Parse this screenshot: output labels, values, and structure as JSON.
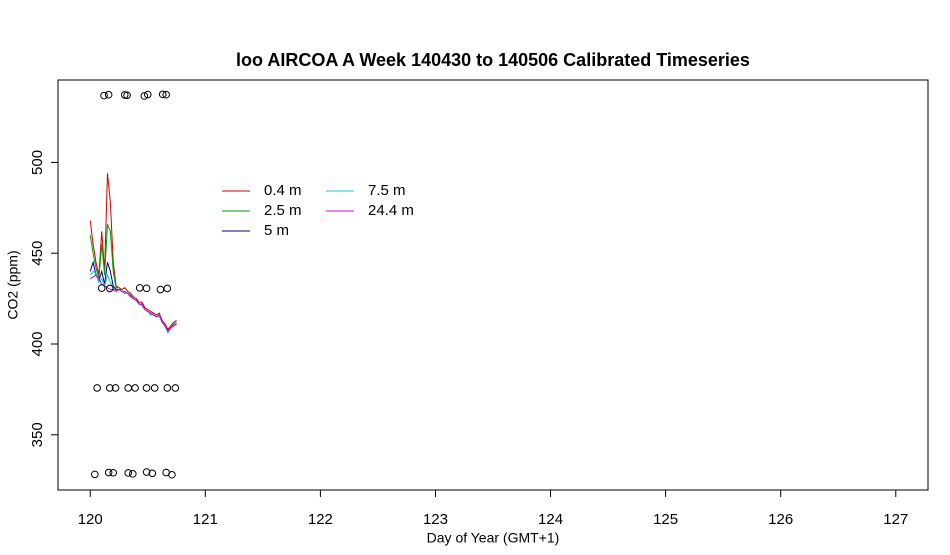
{
  "chart_data": {
    "type": "line",
    "title": "loo AIRCOA A  Week 140430 to 140506  Calibrated Timeseries",
    "x_label": "Day of Year (GMT+1)",
    "y_label": "CO2 (ppm)",
    "xlim": [
      119.72,
      127.28
    ],
    "xticks": [
      120,
      121,
      122,
      123,
      124,
      125,
      126,
      127
    ],
    "ylim": [
      319.6,
      545.4
    ],
    "yticks": [
      350,
      400,
      450,
      500
    ],
    "x": [
      120.0,
      120.025,
      120.05,
      120.075,
      120.1,
      120.125,
      120.15,
      120.175,
      120.2,
      120.225,
      120.25,
      120.275,
      120.3,
      120.325,
      120.35,
      120.375,
      120.4,
      120.425,
      120.45,
      120.475,
      120.5,
      120.525,
      120.55,
      120.575,
      120.6,
      120.625,
      120.65,
      120.675,
      120.7,
      120.725,
      120.75
    ],
    "series": [
      {
        "name": "0.4 m",
        "color": "#d00000",
        "values": [
          468,
          455,
          445,
          438,
          462,
          440,
          494,
          478,
          445,
          432,
          431,
          430,
          431,
          429,
          428,
          426,
          425,
          423,
          423,
          420,
          419,
          418,
          417,
          416,
          417,
          413,
          411,
          408,
          410,
          412,
          413
        ]
      },
      {
        "name": "2.5 m",
        "color": "#00a000",
        "values": [
          460,
          450,
          442,
          436,
          455,
          438,
          466,
          462,
          440,
          431,
          431,
          429,
          429,
          428,
          427,
          425,
          424,
          422,
          422,
          419,
          418,
          417,
          416,
          415,
          416,
          412,
          410,
          407,
          409,
          411,
          412
        ]
      },
      {
        "name": "5 m",
        "color": "#000090",
        "values": [
          440,
          445,
          438,
          435,
          440,
          433,
          445,
          440,
          432,
          430,
          430,
          429,
          428,
          428,
          426,
          425,
          424,
          422,
          422,
          419,
          418,
          417,
          416,
          415,
          416,
          412,
          410,
          407,
          409,
          410,
          411
        ]
      },
      {
        "name": "7.5 m",
        "color": "#00d0e0",
        "values": [
          438,
          440,
          439,
          434,
          436,
          432,
          438,
          434,
          431,
          429,
          430,
          429,
          428,
          428,
          426,
          425,
          424,
          422,
          421,
          419,
          418,
          416,
          416,
          415,
          415,
          412,
          410,
          406,
          409,
          410,
          411
        ]
      },
      {
        "name": "24.4 m",
        "color": "#e000e0",
        "values": [
          436,
          437,
          438,
          436,
          433,
          432,
          431,
          430,
          430,
          429,
          430,
          429,
          428,
          428,
          426,
          425,
          424,
          422,
          422,
          419,
          418,
          417,
          416,
          415,
          416,
          412,
          410,
          407,
          409,
          410,
          411
        ]
      }
    ],
    "points": {
      "x": [
        120.12,
        120.16,
        120.3,
        120.32,
        120.47,
        120.5,
        120.63,
        120.66,
        120.1,
        120.17,
        120.43,
        120.49,
        120.61,
        120.67,
        120.06,
        120.17,
        120.22,
        120.33,
        120.39,
        120.49,
        120.56,
        120.67,
        120.74,
        120.04,
        120.16,
        120.2,
        120.33,
        120.37,
        120.49,
        120.54,
        120.66,
        120.71
      ],
      "y": [
        536.8,
        537.3,
        537.2,
        537,
        536.6,
        537.4,
        537.5,
        537.3,
        430.8,
        430.6,
        430.9,
        430.7,
        430,
        430.6,
        375.8,
        375.8,
        375.8,
        375.8,
        375.8,
        375.8,
        375.8,
        375.8,
        375.8,
        328.2,
        329.2,
        329.1,
        329,
        328.5,
        329.5,
        328.8,
        329.2,
        328
      ]
    }
  }
}
